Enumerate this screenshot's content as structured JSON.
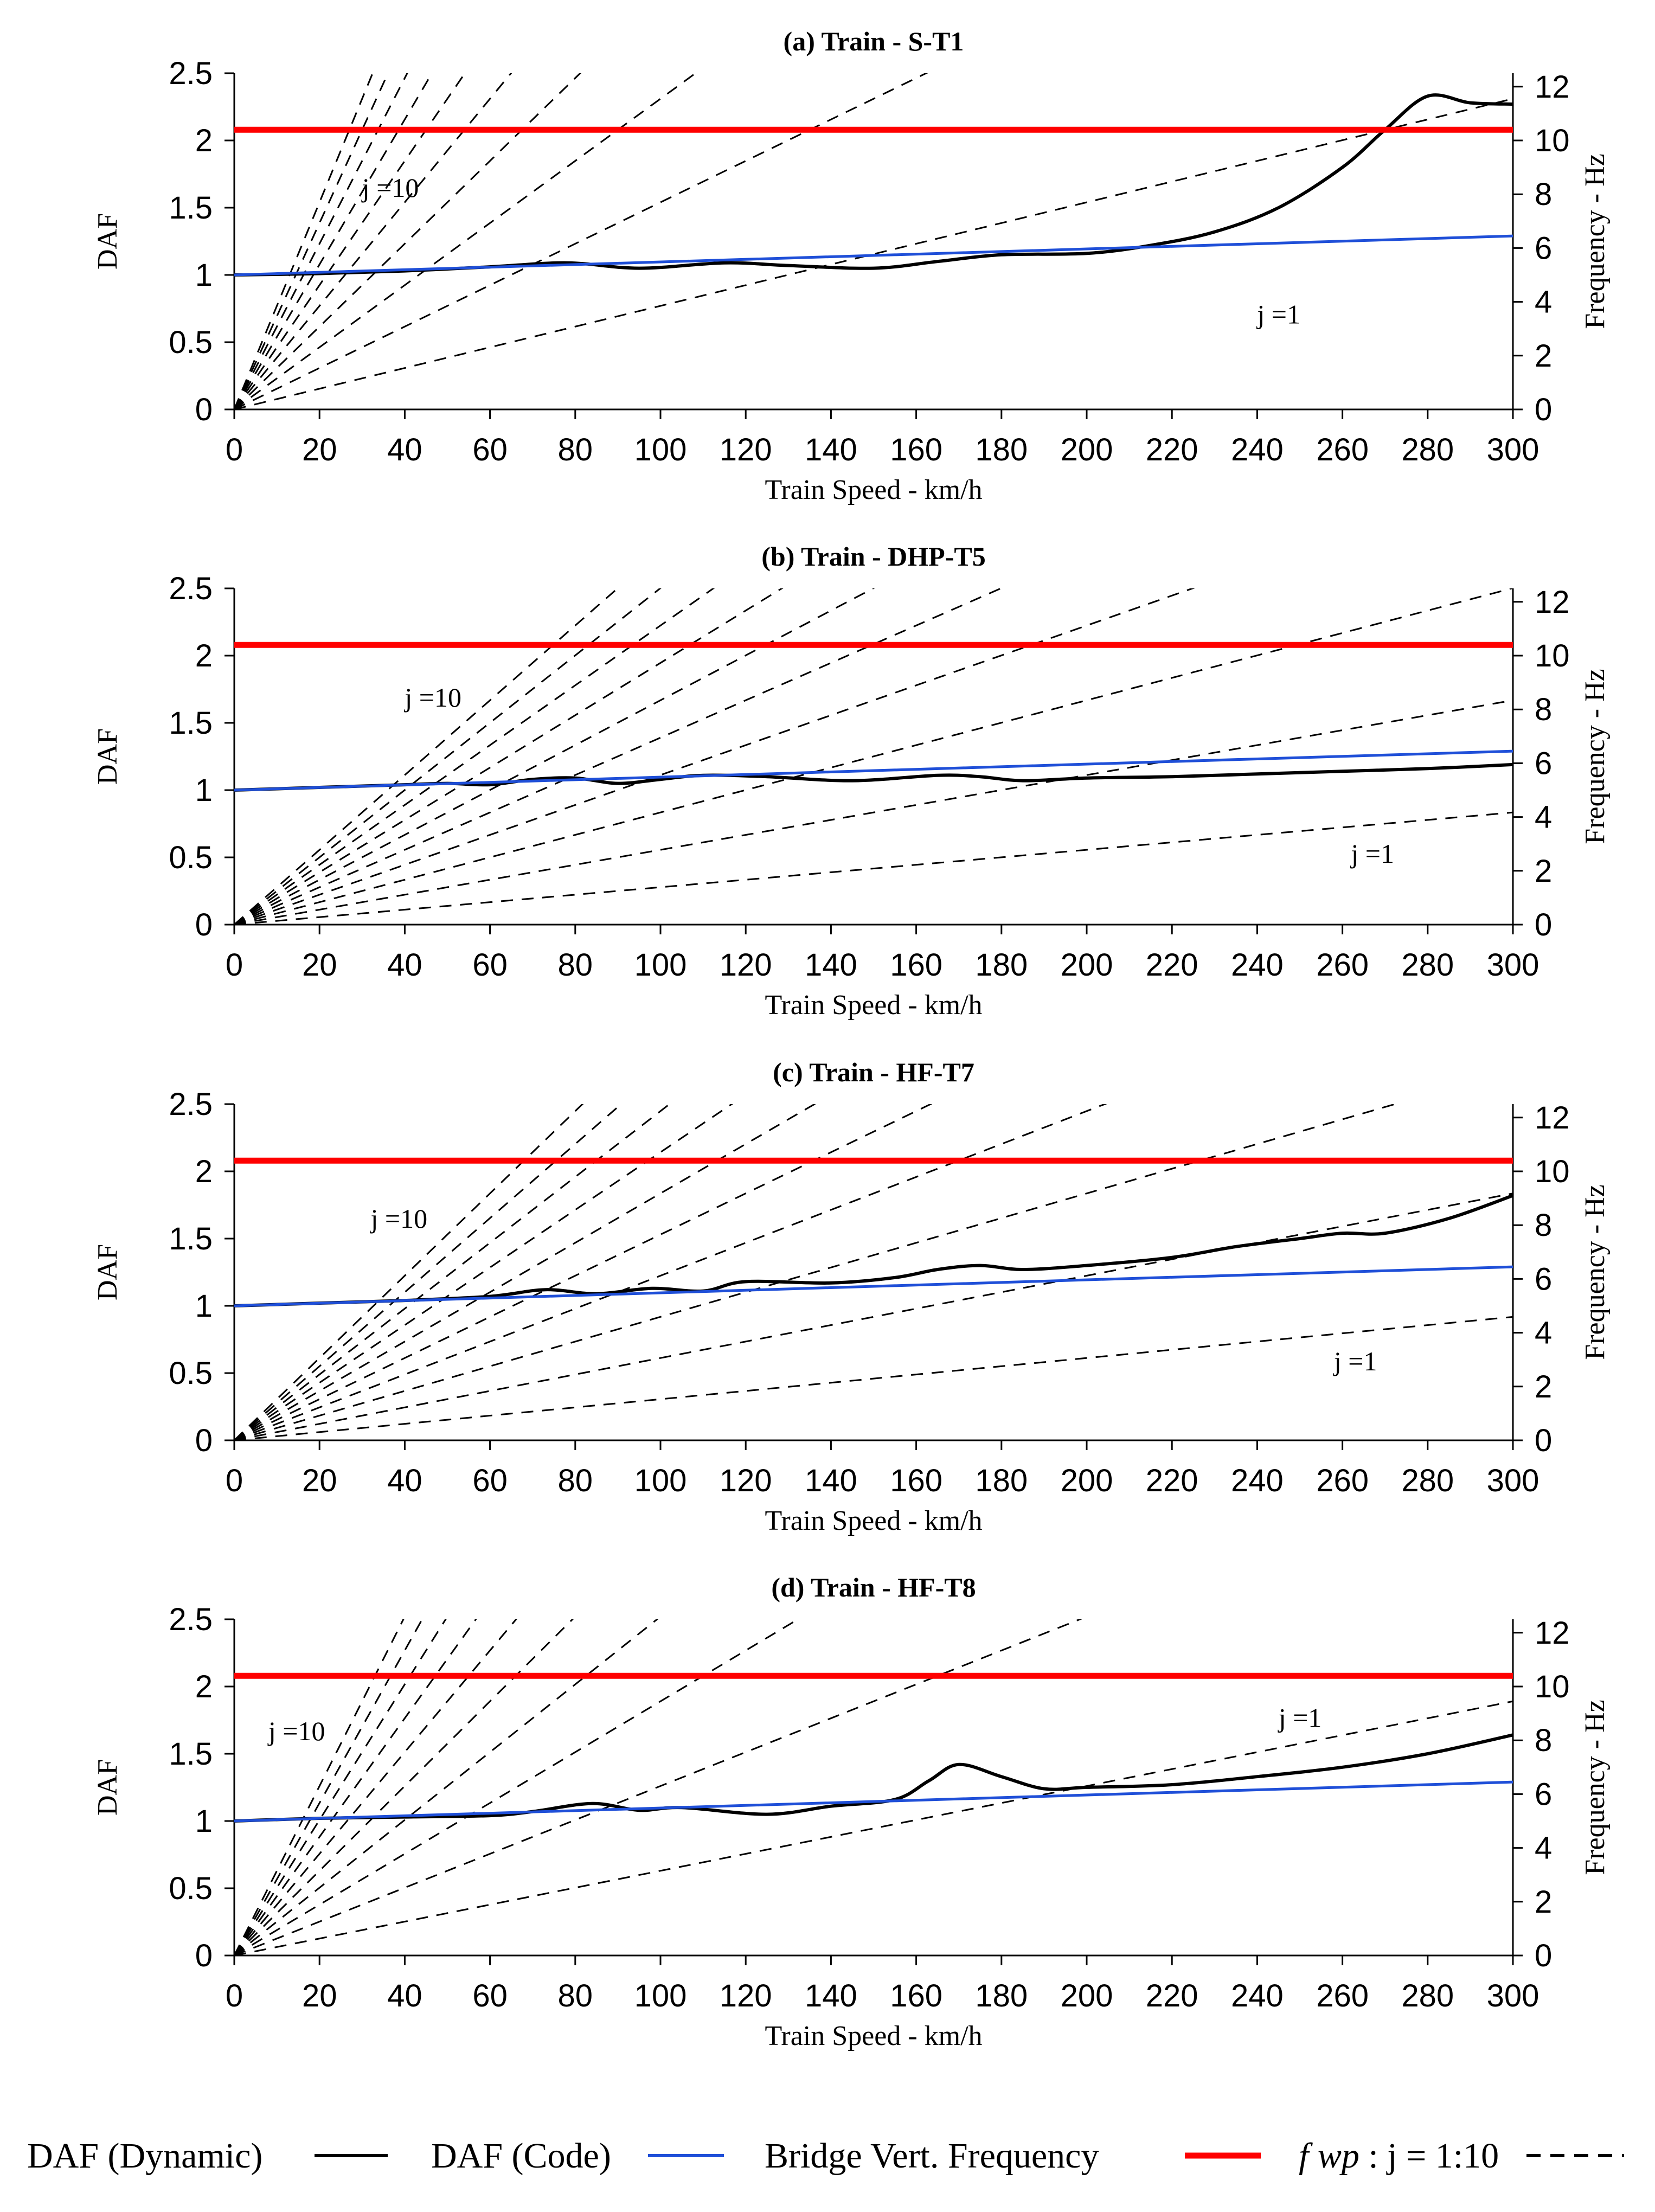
{
  "figure": {
    "legend": [
      {
        "label": "DAF (Dynamic)",
        "color": "#000000",
        "style": "solid"
      },
      {
        "label": "DAF (Code)",
        "color": "#1f4fd8",
        "style": "solid"
      },
      {
        "label": "Bridge Vert. Frequency",
        "color": "#ff0000",
        "style": "solid"
      },
      {
        "label": "f wp : j = 1:10",
        "symbol": "f wp",
        "rest": " : j = 1:10",
        "color": "#000000",
        "style": "dashed"
      }
    ]
  },
  "chart_data": [
    {
      "type": "line",
      "title": "(a) Train - S-T1",
      "xlabel": "Train Speed - km/h",
      "ylabel": "DAF",
      "y2label": "Frequency - Hz",
      "xlim": [
        0,
        300
      ],
      "ylim": [
        0,
        2.5
      ],
      "y2lim": [
        0,
        12.5
      ],
      "xticks": [
        0,
        20,
        40,
        60,
        80,
        100,
        120,
        140,
        160,
        180,
        200,
        220,
        240,
        260,
        280,
        300
      ],
      "yticks": [
        0,
        0.5,
        1,
        1.5,
        2,
        2.5
      ],
      "y2ticks": [
        0,
        2,
        4,
        6,
        8,
        10,
        12
      ],
      "excitation_base_hz_per_kmh": 0.0385,
      "annotations": [
        {
          "text": "j =10",
          "x": 30,
          "y": 1.58
        },
        {
          "text": "j =1",
          "x": 240,
          "y": 0.64
        }
      ],
      "series": [
        {
          "name": "DAF (Dynamic)",
          "color": "#000000",
          "x": [
            0,
            20,
            40,
            60,
            78,
            95,
            115,
            130,
            150,
            165,
            180,
            200,
            215,
            230,
            245,
            260,
            270,
            280,
            290,
            300
          ],
          "y": [
            1.0,
            1.01,
            1.03,
            1.06,
            1.09,
            1.05,
            1.09,
            1.07,
            1.05,
            1.1,
            1.15,
            1.16,
            1.22,
            1.32,
            1.5,
            1.8,
            2.08,
            2.33,
            2.28,
            2.27
          ]
        },
        {
          "name": "DAF (Code)",
          "color": "#1f4fd8",
          "x": [
            0,
            300
          ],
          "y": [
            1.0,
            1.29
          ]
        },
        {
          "name": "Bridge Vert. Frequency",
          "color": "#ff0000",
          "axis": "y2",
          "x": [
            0,
            300
          ],
          "y": [
            10.4,
            10.4
          ]
        }
      ]
    },
    {
      "type": "line",
      "title": "(b) Train - DHP-T5",
      "xlabel": "Train Speed - km/h",
      "ylabel": "DAF",
      "y2label": "Frequency - Hz",
      "xlim": [
        0,
        300
      ],
      "ylim": [
        0,
        2.5
      ],
      "y2lim": [
        0,
        12.5
      ],
      "xticks": [
        0,
        20,
        40,
        60,
        80,
        100,
        120,
        140,
        160,
        180,
        200,
        220,
        240,
        260,
        280,
        300
      ],
      "yticks": [
        0,
        0.5,
        1,
        1.5,
        2,
        2.5
      ],
      "y2ticks": [
        0,
        2,
        4,
        6,
        8,
        10,
        12
      ],
      "excitation_base_hz_per_kmh": 0.0139,
      "annotations": [
        {
          "text": "j =10",
          "x": 40,
          "y": 1.62
        },
        {
          "text": "j =1",
          "x": 262,
          "y": 0.46
        }
      ],
      "series": [
        {
          "name": "DAF (Dynamic)",
          "color": "#000000",
          "x": [
            0,
            20,
            40,
            50,
            60,
            70,
            80,
            90,
            100,
            110,
            125,
            145,
            165,
            175,
            185,
            200,
            220,
            240,
            260,
            280,
            300
          ],
          "y": [
            1.0,
            1.02,
            1.04,
            1.05,
            1.04,
            1.08,
            1.09,
            1.05,
            1.08,
            1.11,
            1.1,
            1.07,
            1.11,
            1.1,
            1.07,
            1.09,
            1.1,
            1.12,
            1.14,
            1.16,
            1.19
          ]
        },
        {
          "name": "DAF (Code)",
          "color": "#1f4fd8",
          "x": [
            0,
            300
          ],
          "y": [
            1.0,
            1.29
          ]
        },
        {
          "name": "Bridge Vert. Frequency",
          "color": "#ff0000",
          "axis": "y2",
          "x": [
            0,
            300
          ],
          "y": [
            10.4,
            10.4
          ]
        }
      ]
    },
    {
      "type": "line",
      "title": "(c) Train - HF-T7",
      "xlabel": "Train Speed - km/h",
      "ylabel": "DAF",
      "y2label": "Frequency - Hz",
      "xlim": [
        0,
        300
      ],
      "ylim": [
        0,
        2.5
      ],
      "y2lim": [
        0,
        12.5
      ],
      "xticks": [
        0,
        20,
        40,
        60,
        80,
        100,
        120,
        140,
        160,
        180,
        200,
        220,
        240,
        260,
        280,
        300
      ],
      "yticks": [
        0,
        0.5,
        1,
        1.5,
        2,
        2.5
      ],
      "y2ticks": [
        0,
        2,
        4,
        6,
        8,
        10,
        12
      ],
      "excitation_base_hz_per_kmh": 0.0153,
      "annotations": [
        {
          "text": "j =10",
          "x": 32,
          "y": 1.58
        },
        {
          "text": "j =1",
          "x": 258,
          "y": 0.52
        }
      ],
      "series": [
        {
          "name": "DAF (Dynamic)",
          "color": "#000000",
          "x": [
            0,
            20,
            40,
            60,
            73,
            85,
            98,
            110,
            120,
            140,
            155,
            165,
            175,
            185,
            200,
            220,
            235,
            250,
            260,
            270,
            285,
            300
          ],
          "y": [
            1.0,
            1.02,
            1.04,
            1.07,
            1.12,
            1.09,
            1.13,
            1.11,
            1.18,
            1.17,
            1.21,
            1.27,
            1.3,
            1.27,
            1.3,
            1.36,
            1.44,
            1.5,
            1.54,
            1.54,
            1.65,
            1.82
          ]
        },
        {
          "name": "DAF (Code)",
          "color": "#1f4fd8",
          "x": [
            0,
            300
          ],
          "y": [
            1.0,
            1.29
          ]
        },
        {
          "name": "Bridge Vert. Frequency",
          "color": "#ff0000",
          "axis": "y2",
          "x": [
            0,
            300
          ],
          "y": [
            10.4,
            10.4
          ]
        }
      ]
    },
    {
      "type": "line",
      "title": "(d) Train - HF-T8",
      "xlabel": "Train Speed - km/h",
      "ylabel": "DAF",
      "y2label": "Frequency - Hz",
      "xlim": [
        0,
        300
      ],
      "ylim": [
        0,
        2.5
      ],
      "y2lim": [
        0,
        12.5
      ],
      "xticks": [
        0,
        20,
        40,
        60,
        80,
        100,
        120,
        140,
        160,
        180,
        200,
        220,
        240,
        260,
        280,
        300
      ],
      "yticks": [
        0,
        0.5,
        1,
        1.5,
        2,
        2.5
      ],
      "y2ticks": [
        0,
        2,
        4,
        6,
        8,
        10,
        12
      ],
      "excitation_base_hz_per_kmh": 0.0315,
      "annotations": [
        {
          "text": "j =10",
          "x": 8,
          "y": 1.6
        },
        {
          "text": "j =1",
          "x": 245,
          "y": 1.7
        }
      ],
      "series": [
        {
          "name": "DAF (Dynamic)",
          "color": "#000000",
          "x": [
            0,
            20,
            40,
            60,
            70,
            84,
            95,
            105,
            125,
            140,
            155,
            163,
            170,
            180,
            190,
            200,
            220,
            240,
            260,
            280,
            300
          ],
          "y": [
            1.0,
            1.02,
            1.03,
            1.04,
            1.07,
            1.13,
            1.08,
            1.1,
            1.05,
            1.11,
            1.16,
            1.3,
            1.42,
            1.33,
            1.24,
            1.25,
            1.27,
            1.33,
            1.4,
            1.5,
            1.64
          ]
        },
        {
          "name": "DAF (Code)",
          "color": "#1f4fd8",
          "x": [
            0,
            300
          ],
          "y": [
            1.0,
            1.29
          ]
        },
        {
          "name": "Bridge Vert. Frequency",
          "color": "#ff0000",
          "axis": "y2",
          "x": [
            0,
            300
          ],
          "y": [
            10.4,
            10.4
          ]
        }
      ]
    }
  ]
}
